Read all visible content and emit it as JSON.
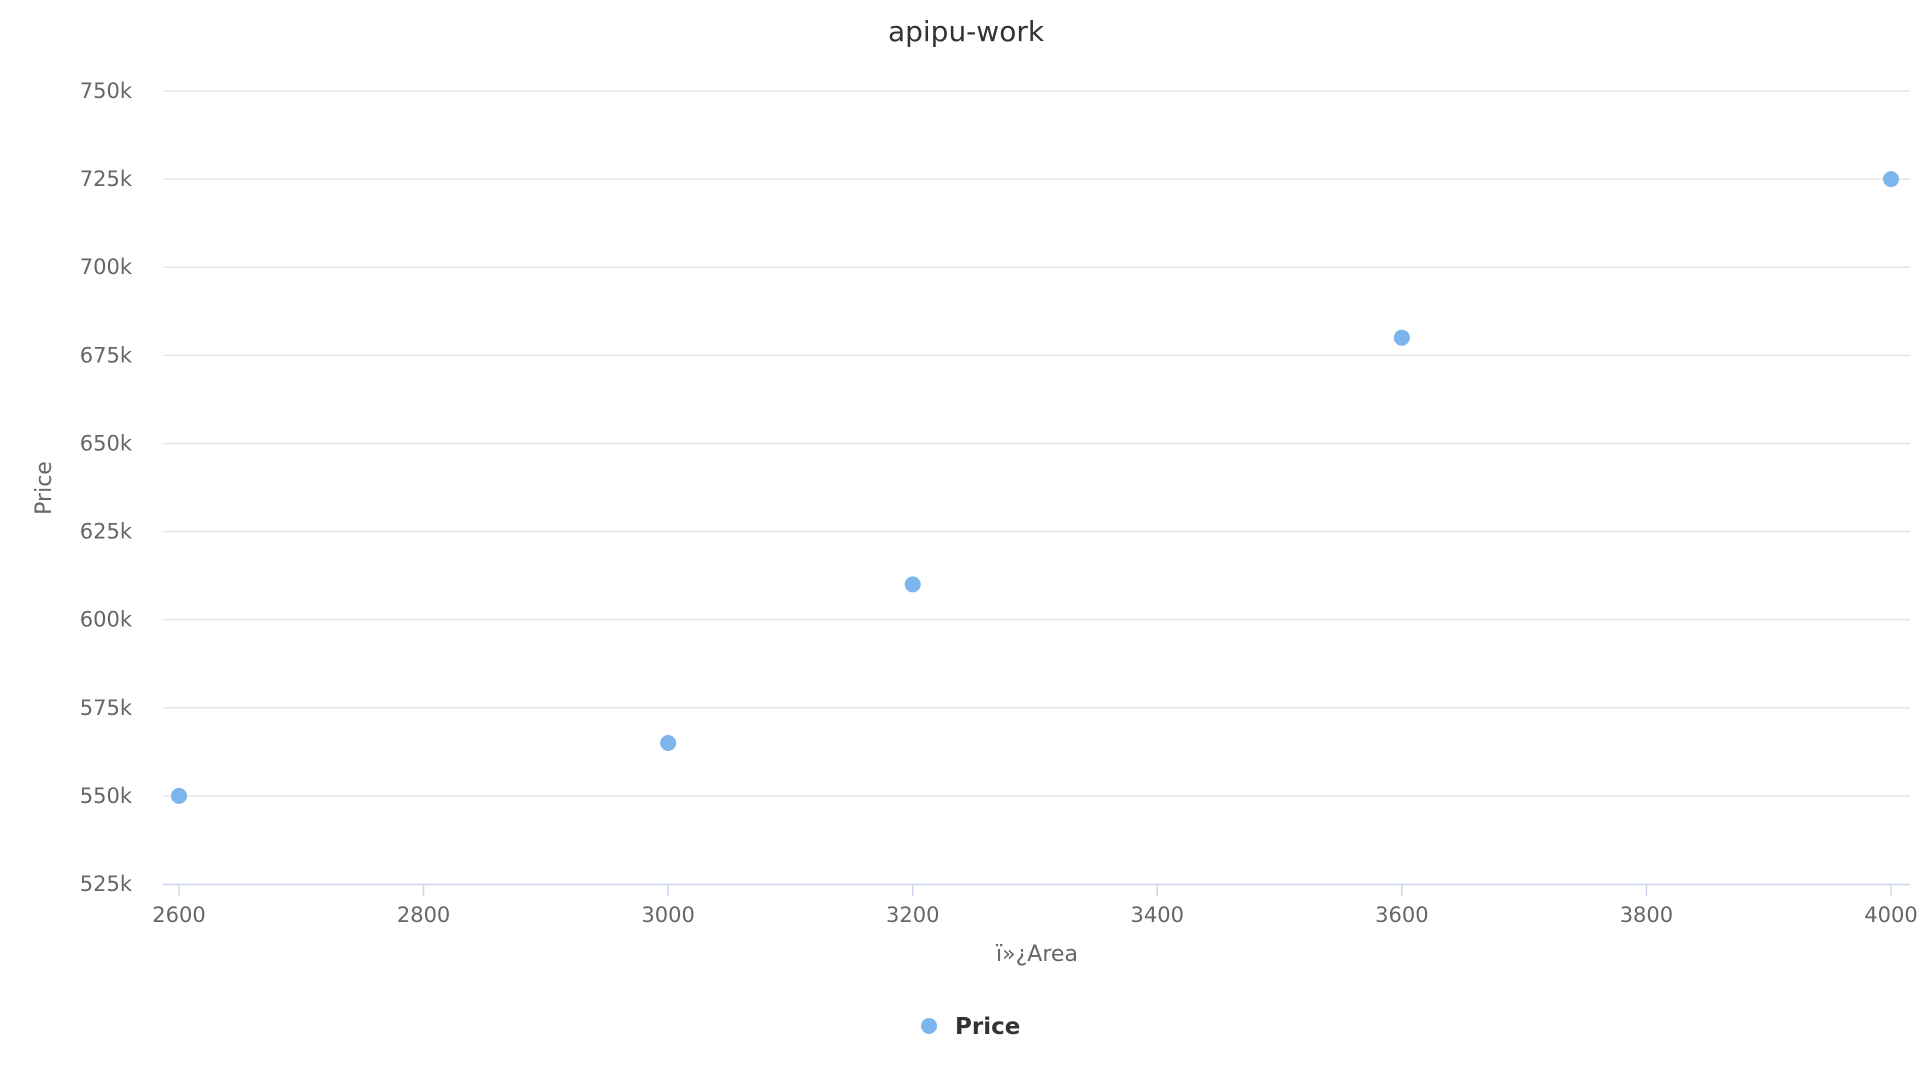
{
  "chart_data": {
    "type": "scatter",
    "title": "apipu-work",
    "xlabel": "ï»¿Area",
    "ylabel": "Price",
    "xlim": [
      2600,
      4000
    ],
    "ylim": [
      525000,
      750000
    ],
    "x_ticks": [
      2600,
      2800,
      3000,
      3200,
      3400,
      3600,
      3800,
      4000
    ],
    "y_ticks": [
      525000,
      550000,
      575000,
      600000,
      625000,
      650000,
      675000,
      700000,
      725000,
      750000
    ],
    "x_tick_labels": [
      "2600",
      "2800",
      "3000",
      "3200",
      "3400",
      "3600",
      "3800",
      "4000"
    ],
    "y_tick_labels": [
      "525k",
      "550k",
      "575k",
      "600k",
      "625k",
      "650k",
      "675k",
      "700k",
      "725k",
      "750k"
    ],
    "grid": "horizontal",
    "legend": "bottom-center",
    "series": [
      {
        "name": "Price",
        "color": "#7cb5ec",
        "points": [
          {
            "x": 2600,
            "y": 550000
          },
          {
            "x": 3000,
            "y": 565000
          },
          {
            "x": 3200,
            "y": 610000
          },
          {
            "x": 3600,
            "y": 680000
          },
          {
            "x": 4000,
            "y": 725000
          }
        ]
      }
    ]
  }
}
